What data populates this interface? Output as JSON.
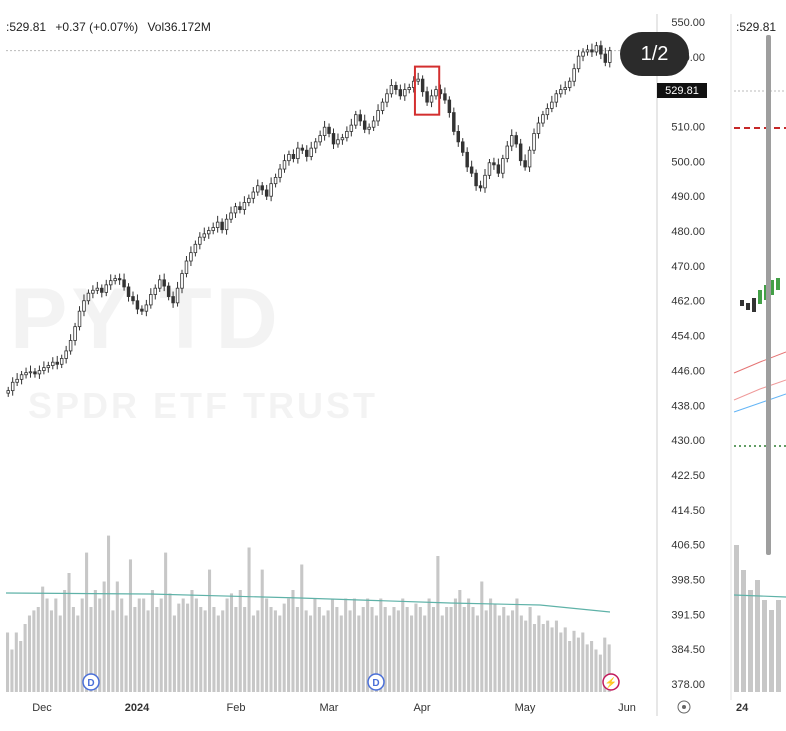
{
  "header": {
    "price": ":529.81",
    "change": "+0.37 (+0.07%)",
    "volume_label": "Vol",
    "volume": "36.172M",
    "right_panel_price": ":529.81"
  },
  "page_indicator": "1/2",
  "current_price_tag": "529.81",
  "chart_data": {
    "type": "candlestick",
    "title": "",
    "x_tick_labels": [
      "Dec",
      "2024",
      "Feb",
      "Mar",
      "Apr",
      "May",
      "Jun"
    ],
    "right_panel_x_label": "24",
    "y_tick_labels": [
      "550.00",
      "530.00",
      "520.00",
      "510.00",
      "500.00",
      "490.00",
      "480.00",
      "470.00",
      "462.00",
      "454.00",
      "446.00",
      "438.00",
      "430.00",
      "422.50",
      "414.50",
      "406.50",
      "398.50",
      "391.50",
      "384.50",
      "378.00"
    ],
    "price_axis": {
      "min": 378.0,
      "max": 550.0
    },
    "current_price": 529.81,
    "closes": [
      448.5,
      450.5,
      451.2,
      452.3,
      452.8,
      453.0,
      452.5,
      453.3,
      454.0,
      454.5,
      455.3,
      454.8,
      456.2,
      458.0,
      460.5,
      463.8,
      467.5,
      470.0,
      471.8,
      472.5,
      473.0,
      472.0,
      473.8,
      474.8,
      475.3,
      475.0,
      473.3,
      471.0,
      470.0,
      468.0,
      467.5,
      469.0,
      471.5,
      473.0,
      475.0,
      473.5,
      471.0,
      469.5,
      473.0,
      476.5,
      479.5,
      481.5,
      483.5,
      485.2,
      486.0,
      486.8,
      487.5,
      488.8,
      487.0,
      489.5,
      491.0,
      492.5,
      491.8,
      493.5,
      494.5,
      496.0,
      497.5,
      496.5,
      495.0,
      498.0,
      499.5,
      501.5,
      503.5,
      505.0,
      504.0,
      506.5,
      506.0,
      504.5,
      506.5,
      508.0,
      509.5,
      511.5,
      510.0,
      507.5,
      508.5,
      509.0,
      510.5,
      512.0,
      514.5,
      513.0,
      511.0,
      511.5,
      513.0,
      515.5,
      517.5,
      519.5,
      521.5,
      520.5,
      519.0,
      520.5,
      521.0,
      522.5,
      523.0,
      520.0,
      517.5,
      519.0,
      520.5,
      519.5,
      518.0,
      515.0,
      510.5,
      508.0,
      505.5,
      502.0,
      500.5,
      497.5,
      497.0,
      500.0,
      503.0,
      502.5,
      500.5,
      504.0,
      507.0,
      509.5,
      507.5,
      503.5,
      502.0,
      506.0,
      510.0,
      512.5,
      514.5,
      516.0,
      517.5,
      519.5,
      520.5,
      521.0,
      522.5,
      525.5,
      528.5,
      529.5,
      530.0,
      529.5,
      531.0,
      529.0,
      527.0,
      529.81
    ],
    "volume_relative": [
      0.35,
      0.25,
      0.35,
      0.3,
      0.4,
      0.45,
      0.48,
      0.5,
      0.62,
      0.55,
      0.48,
      0.55,
      0.45,
      0.6,
      0.7,
      0.5,
      0.45,
      0.55,
      0.82,
      0.5,
      0.6,
      0.55,
      0.65,
      0.92,
      0.48,
      0.65,
      0.55,
      0.45,
      0.78,
      0.5,
      0.55,
      0.55,
      0.48,
      0.6,
      0.5,
      0.55,
      0.82,
      0.58,
      0.45,
      0.52,
      0.55,
      0.52,
      0.6,
      0.55,
      0.5,
      0.48,
      0.72,
      0.5,
      0.45,
      0.48,
      0.55,
      0.58,
      0.5,
      0.6,
      0.5,
      0.85,
      0.45,
      0.48,
      0.72,
      0.55,
      0.5,
      0.48,
      0.45,
      0.52,
      0.55,
      0.6,
      0.5,
      0.75,
      0.48,
      0.45,
      0.55,
      0.5,
      0.45,
      0.48,
      0.55,
      0.5,
      0.45,
      0.55,
      0.48,
      0.55,
      0.45,
      0.5,
      0.55,
      0.5,
      0.45,
      0.55,
      0.5,
      0.45,
      0.5,
      0.48,
      0.55,
      0.5,
      0.45,
      0.52,
      0.5,
      0.45,
      0.55,
      0.5,
      0.8,
      0.45,
      0.5,
      0.5,
      0.55,
      0.6,
      0.5,
      0.55,
      0.5,
      0.45,
      0.65,
      0.48,
      0.55,
      0.52,
      0.45,
      0.5,
      0.45,
      0.48,
      0.55,
      0.45,
      0.42,
      0.5,
      0.4,
      0.45,
      0.4,
      0.42,
      0.38,
      0.42,
      0.35,
      0.38,
      0.3,
      0.36,
      0.32,
      0.35,
      0.28,
      0.3,
      0.25,
      0.22,
      0.32,
      0.28
    ],
    "volume_moving_average": "flat teal line",
    "highlights": [
      {
        "label": "first box",
        "from_index": 92,
        "to_index": 96
      },
      {
        "label": "second box",
        "from_index": 134,
        "to_index": 136
      }
    ],
    "event_markers": [
      {
        "label": "D",
        "position_label": "Dec"
      },
      {
        "label": "D",
        "position_label": "Mar"
      },
      {
        "label": "⚡",
        "position_label": "Jun"
      }
    ]
  },
  "colors": {
    "candle": "#333333",
    "volume_bar": "#c7c7c7",
    "volume_ma": "#5fb2a8",
    "highlight_box": "#d32f2f",
    "grid": "#e5e5e5",
    "axis_line": "#cfcfcf",
    "marker_blue": "#4a6fd8",
    "marker_pink": "#c2185b"
  },
  "watermark": {
    "line1": "PY TD",
    "line2": "SPDR ETF TRUST"
  }
}
